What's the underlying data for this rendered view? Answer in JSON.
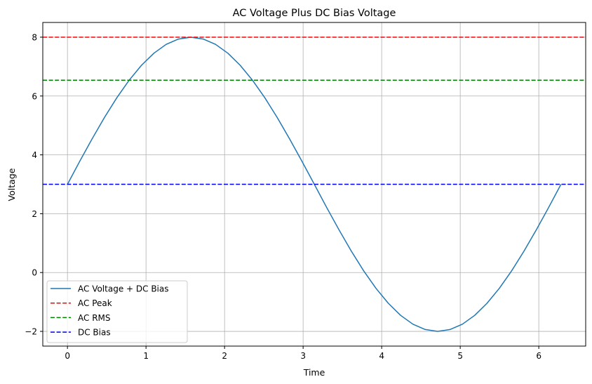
{
  "chart_data": {
    "type": "line",
    "title": "AC Voltage Plus DC Bias Voltage",
    "xlabel": "Time",
    "ylabel": "Voltage",
    "xlim": [
      -0.314,
      6.597
    ],
    "ylim": [
      -2.5,
      8.5
    ],
    "xticks": [
      0,
      1,
      2,
      3,
      4,
      5,
      6
    ],
    "yticks": [
      -2,
      0,
      2,
      4,
      6,
      8
    ],
    "ytick_labels": [
      "−2",
      "0",
      "2",
      "4",
      "6",
      "8"
    ],
    "grid": true,
    "legend_placement": "lower-left",
    "series": [
      {
        "name": "AC Voltage + DC Bias",
        "style": "solid",
        "color": "#1f77b4",
        "x": [
          0,
          0.157,
          0.314,
          0.471,
          0.628,
          0.785,
          0.942,
          1.1,
          1.257,
          1.414,
          1.571,
          1.728,
          1.885,
          2.042,
          2.199,
          2.356,
          2.513,
          2.67,
          2.827,
          2.985,
          3.142,
          3.299,
          3.456,
          3.613,
          3.77,
          3.927,
          4.084,
          4.241,
          4.398,
          4.555,
          4.712,
          4.869,
          5.027,
          5.184,
          5.341,
          5.498,
          5.655,
          5.812,
          5.969,
          6.126,
          6.283
        ],
        "y": [
          3,
          3.782,
          4.545,
          5.27,
          5.939,
          6.536,
          7.045,
          7.455,
          7.755,
          7.938,
          8,
          7.938,
          7.755,
          7.455,
          7.045,
          6.536,
          5.939,
          5.27,
          4.545,
          3.782,
          3,
          2.218,
          1.455,
          0.73,
          0.061,
          -0.536,
          -1.045,
          -1.455,
          -1.755,
          -1.938,
          -2,
          -1.938,
          -1.755,
          -1.455,
          -1.045,
          -0.536,
          0.061,
          0.73,
          1.455,
          2.218,
          3
        ]
      },
      {
        "name": "AC Peak",
        "style": "dashed",
        "color": "#ff0000",
        "hline": 8
      },
      {
        "name": "AC RMS",
        "style": "dashed",
        "color": "#008000",
        "hline": 6.536
      },
      {
        "name": "DC Bias",
        "style": "dashed",
        "color": "#0000ff",
        "hline": 3
      }
    ]
  }
}
